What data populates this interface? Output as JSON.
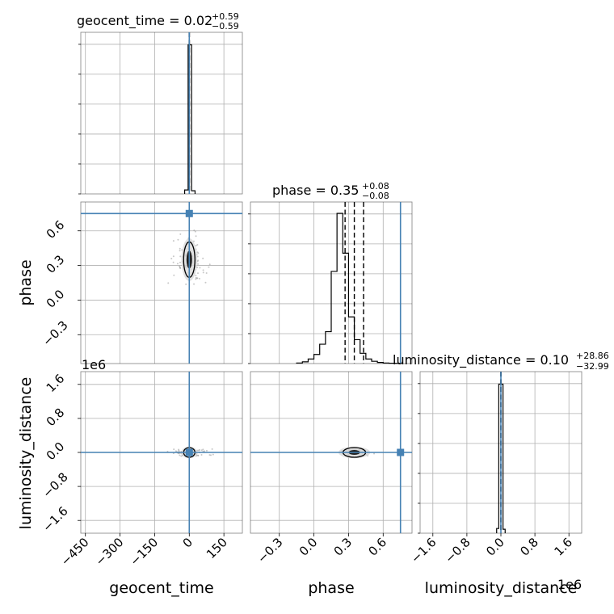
{
  "chart_data": {
    "type": "corner",
    "parameters": [
      "geocent_time",
      "phase",
      "luminosity_distance"
    ],
    "axis_labels": [
      "geocent_time",
      "phase",
      "luminosity_distance"
    ],
    "ranges": {
      "geocent_time": [
        -470,
        230
      ],
      "phase": [
        -0.55,
        0.85
      ],
      "luminosity_distance": [
        -1900000,
        1900000
      ]
    },
    "ticks": {
      "geocent_time": [
        -450,
        -300,
        -150,
        0,
        150
      ],
      "phase_x": [
        -0.3,
        0.0,
        0.3,
        0.6
      ],
      "phase_y": [
        -0.3,
        0.0,
        0.3,
        0.6
      ],
      "luminosity_distance": [
        -1600000,
        -800000,
        0,
        800000,
        1600000
      ]
    },
    "tick_labels": {
      "geocent_time": [
        "−450",
        "−300",
        "−150",
        "0",
        "150"
      ],
      "phase": [
        "−0.3",
        "0.0",
        "0.3",
        "0.6"
      ],
      "luminosity_distance": [
        "−1.6",
        "−0.8",
        "0.0",
        "0.8",
        "1.6"
      ]
    },
    "offset_label": "1e6",
    "titles": [
      {
        "text": "geocent_time = 0.02",
        "sup": "+0.59",
        "sub": "−0.59"
      },
      {
        "text": "phase = 0.35",
        "sup": "+0.08",
        "sub": "−0.08"
      },
      {
        "text": "luminosity_distance = 0.10",
        "sup": "+28.86",
        "sub": "−32.99"
      }
    ],
    "truths": {
      "geocent_time": 0.0,
      "phase": 0.75,
      "luminosity_distance": 0.0
    },
    "quantiles": {
      "geocent_time": [
        -0.57,
        0.02,
        0.61
      ],
      "phase": [
        0.27,
        0.35,
        0.43
      ],
      "luminosity_distance": [
        -32.89,
        0.1,
        28.96
      ]
    },
    "histograms": {
      "geocent_time": {
        "edges": [
          -20,
          -5,
          10,
          25
        ],
        "counts": [
          0.25,
          9.5,
          0.2
        ],
        "ymax": 10.3
      },
      "phase": {
        "edges": [
          -0.15,
          -0.1,
          -0.05,
          0.0,
          0.05,
          0.1,
          0.15,
          0.2,
          0.25,
          0.3,
          0.35,
          0.4,
          0.45,
          0.5,
          0.55,
          0.6,
          0.65,
          0.7,
          0.75
        ],
        "counts": [
          0.05,
          0.15,
          0.4,
          0.8,
          1.7,
          2.8,
          8.1,
          13.2,
          9.7,
          4.1,
          2.1,
          0.9,
          0.4,
          0.2,
          0.1,
          0.05,
          0.03,
          0.02
        ],
        "ymax": 14.2
      },
      "luminosity_distance": {
        "edges": [
          -100000,
          -50000,
          50000,
          100000
        ],
        "counts": [
          0.3,
          9.5,
          0.25
        ],
        "ymax": 10.3
      }
    },
    "grid": true
  }
}
